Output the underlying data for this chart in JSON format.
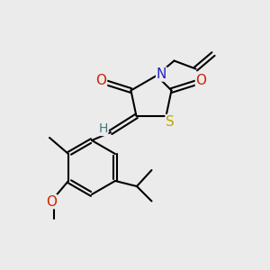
{
  "background_color": "#ebebeb",
  "atom_colors": {
    "C": "#000000",
    "N": "#2222cc",
    "O": "#cc2200",
    "S": "#bbaa00",
    "H": "#447777"
  },
  "bond_color": "#000000",
  "bond_width": 1.5,
  "font_size": 10,
  "fig_width": 3.0,
  "fig_height": 3.0,
  "dpi": 100,
  "xlim": [
    0,
    10
  ],
  "ylim": [
    0,
    10
  ]
}
